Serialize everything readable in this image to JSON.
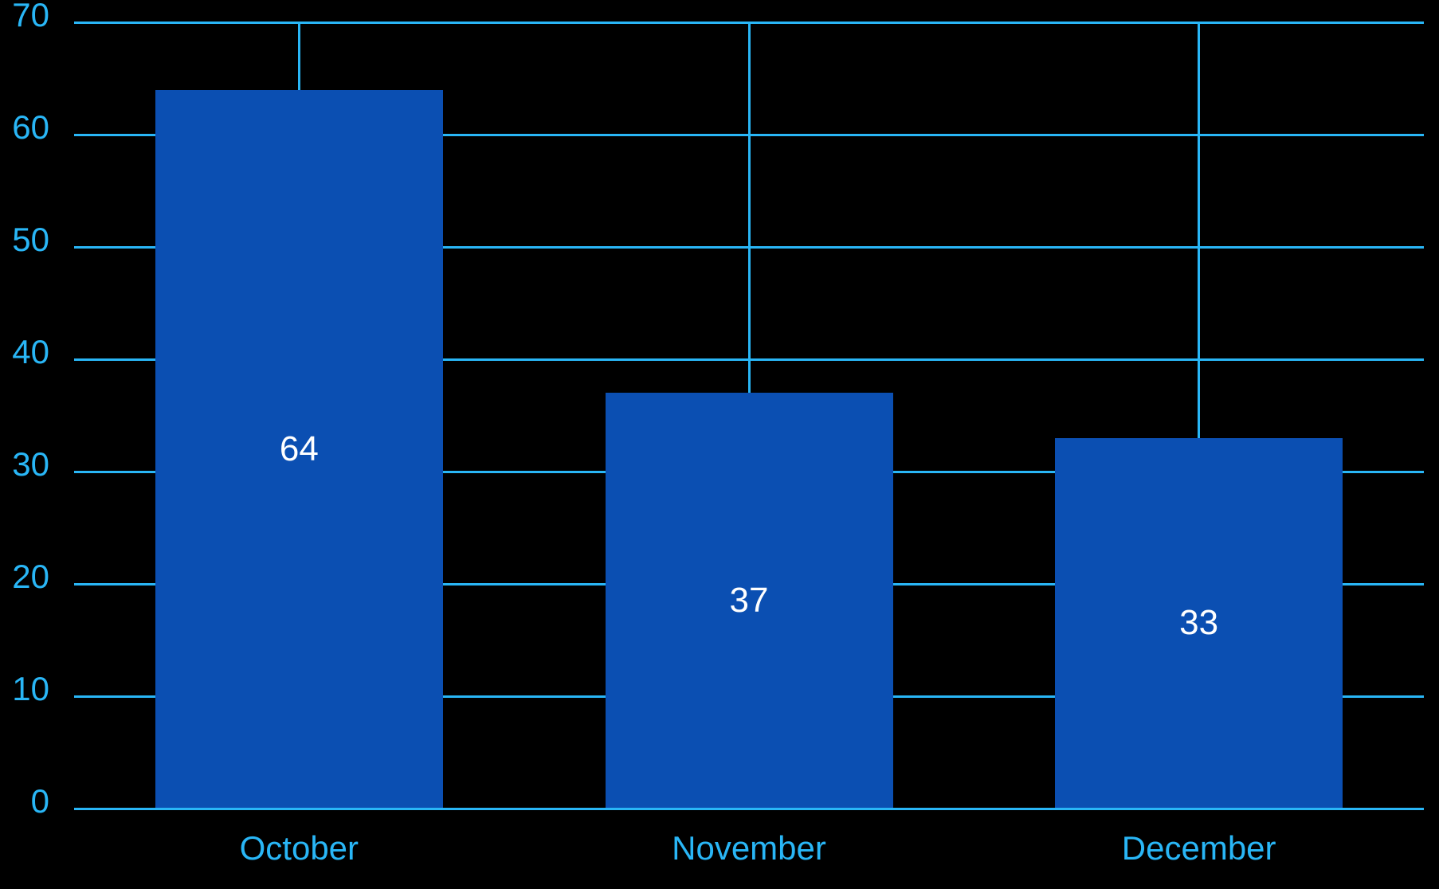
{
  "chart_data": {
    "type": "bar",
    "title": "",
    "xlabel": "",
    "ylabel": "",
    "categories": [
      "October",
      "November",
      "December"
    ],
    "values": [
      64,
      37,
      33
    ],
    "value_labels": [
      "64",
      "37",
      "33"
    ],
    "ylim": [
      0,
      70
    ],
    "ytick_step": 10,
    "ytick_labels": [
      "0",
      "10",
      "20",
      "30",
      "40",
      "50",
      "60",
      "70"
    ],
    "grid": true,
    "legend": "none",
    "colors": {
      "background": "#000000",
      "bar": "#0B4FB2",
      "grid": "#29B6F6",
      "axis_text": "#29B6F6",
      "value_label": "#FFFFFF"
    }
  }
}
